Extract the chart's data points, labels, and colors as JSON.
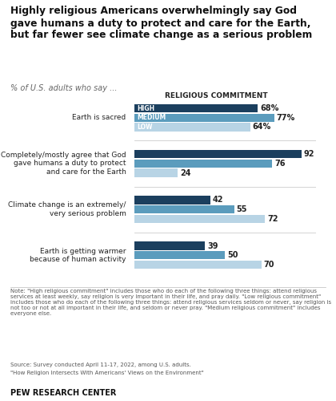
{
  "title": "Highly religious Americans overwhelmingly say God\ngave humans a duty to protect and care for the Earth,\nbut far fewer see climate change as a serious problem",
  "subtitle": "% of U.S. adults who say ...",
  "legend_title": "RELIGIOUS COMMITMENT",
  "categories": [
    "Earth is sacred",
    "Completely/mostly agree that God\ngave humans a duty to protect\nand care for the Earth",
    "Climate change is an extremely/\nvery serious problem",
    "Earth is getting warmer\nbecause of human activity"
  ],
  "series": {
    "HIGH": [
      68,
      92,
      42,
      39
    ],
    "MEDIUM": [
      77,
      76,
      55,
      50
    ],
    "LOW": [
      64,
      24,
      72,
      70
    ]
  },
  "colors": {
    "HIGH": "#1b3f5e",
    "MEDIUM": "#5b9cbd",
    "LOW": "#b8d4e5"
  },
  "value_labels": {
    "HIGH": [
      "68%",
      "92",
      "42",
      "39"
    ],
    "MEDIUM": [
      "77%",
      "76",
      "55",
      "50"
    ],
    "LOW": [
      "64%",
      "24",
      "72",
      "70"
    ]
  },
  "note": "Note: \"High religious commitment\" includes those who do each of the following three things: attend religious services at least weekly, say religion is very important in their life, and pray daily. \"Low religious commitment\" includes those who do each of the following three things: attend religious services seldom or never, say religion is not too or not at all important in their life, and seldom or never pray. \"Medium religious commitment\" includes everyone else.",
  "source1": "Source: Survey conducted April 11-17, 2022, among U.S. adults.",
  "source2": "\"How Religion Intersects With Americans' Views on the Environment\"",
  "branding": "PEW RESEARCH CENTER",
  "background_color": "#ffffff"
}
